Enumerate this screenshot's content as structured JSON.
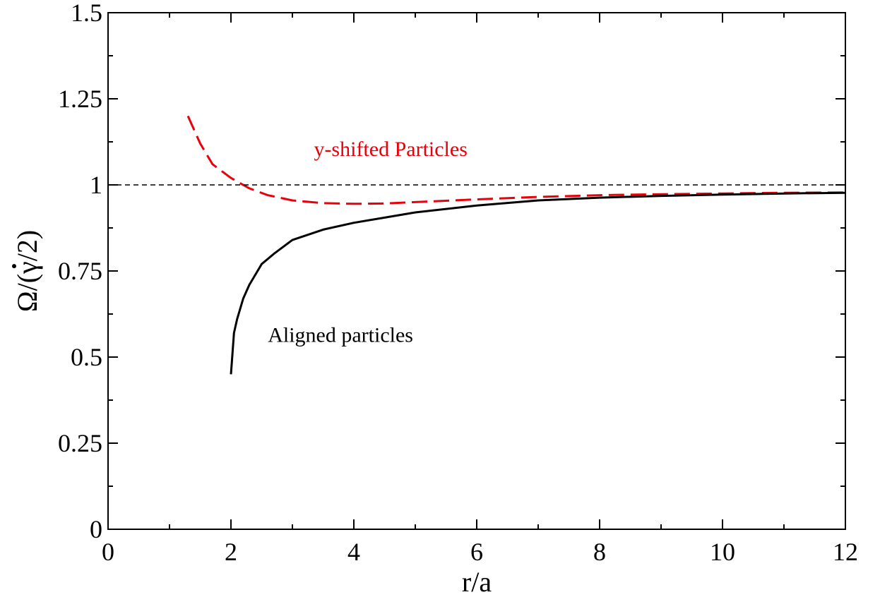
{
  "chart_data": {
    "type": "line",
    "xlabel": "r/a",
    "ylabel_parts": [
      "Ω/(",
      "γ",
      "/2)"
    ],
    "xlim": [
      0,
      12
    ],
    "ylim": [
      0,
      1.5
    ],
    "xticks": [
      0,
      2,
      4,
      6,
      8,
      10,
      12
    ],
    "xtick_labels": [
      "0",
      "2",
      "4",
      "6",
      "8",
      "10",
      "12"
    ],
    "yticks": [
      0,
      0.25,
      0.5,
      0.75,
      1,
      1.25,
      1.5
    ],
    "ytick_labels": [
      "0",
      "0.25",
      "0.5",
      "0.75",
      "1",
      "1.25",
      "1.5"
    ],
    "grid": false,
    "series": [
      {
        "name": "y-shifted Particles",
        "color": "#e8000b",
        "style": "dashed",
        "x": [
          1.3,
          1.5,
          1.7,
          2.0,
          2.3,
          2.6,
          3.0,
          3.5,
          4.0,
          4.5,
          5.0,
          6.0,
          7.0,
          8.0,
          9.0,
          10.0,
          11.0,
          12.0
        ],
        "y": [
          1.2,
          1.12,
          1.06,
          1.02,
          0.99,
          0.97,
          0.955,
          0.947,
          0.945,
          0.946,
          0.95,
          0.958,
          0.965,
          0.97,
          0.973,
          0.975,
          0.977,
          0.978
        ]
      },
      {
        "name": "Aligned particles",
        "color": "#000000",
        "style": "solid",
        "x": [
          2.0,
          2.05,
          2.1,
          2.2,
          2.3,
          2.4,
          2.5,
          2.7,
          3.0,
          3.5,
          4.0,
          4.5,
          5.0,
          6.0,
          7.0,
          8.0,
          9.0,
          10.0,
          11.0,
          12.0
        ],
        "y": [
          0.45,
          0.57,
          0.61,
          0.67,
          0.71,
          0.74,
          0.77,
          0.8,
          0.84,
          0.87,
          0.89,
          0.905,
          0.92,
          0.94,
          0.955,
          0.963,
          0.968,
          0.972,
          0.975,
          0.977
        ]
      },
      {
        "name": "",
        "color": "#000000",
        "style": "reference",
        "x": [
          0,
          12
        ],
        "y": [
          1,
          1
        ]
      }
    ],
    "annotations": [
      {
        "text": "y-shifted Particles",
        "color": "#e8000b"
      },
      {
        "text": "Aligned particles",
        "color": "#000000"
      }
    ]
  }
}
